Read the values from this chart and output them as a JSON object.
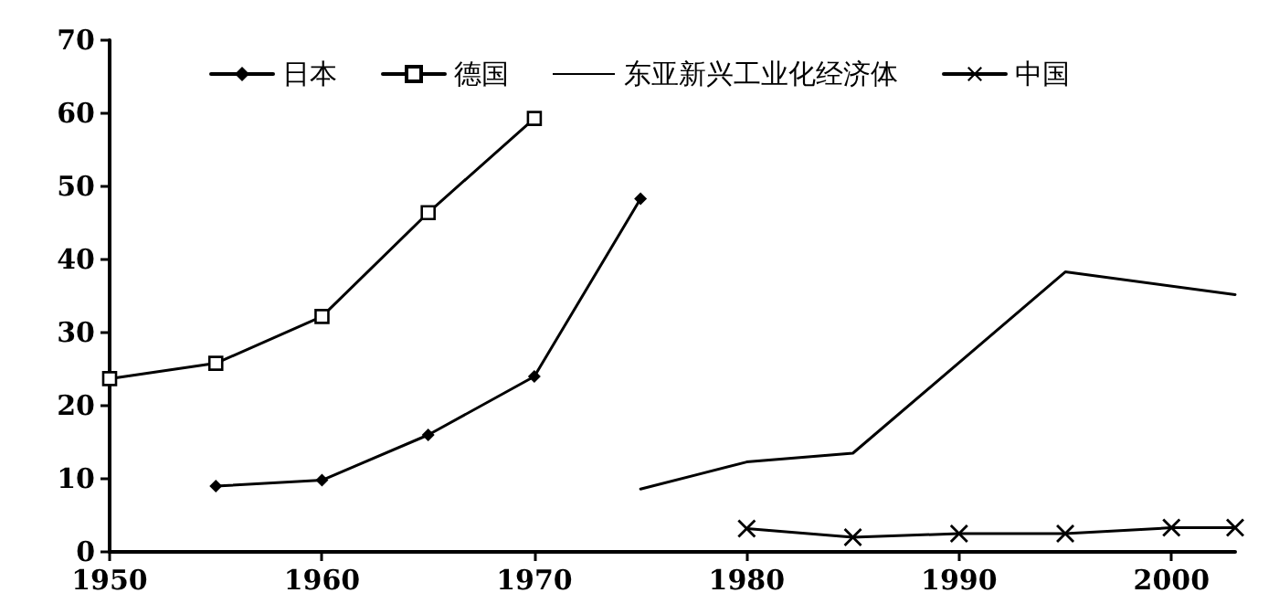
{
  "chart_data": {
    "type": "line",
    "series": [
      {
        "name": "日本",
        "color": "#000000",
        "marker": "diamond",
        "x": [
          1955,
          1960,
          1965,
          1970,
          1975
        ],
        "values": [
          9,
          9.8,
          16,
          24,
          48.3
        ]
      },
      {
        "name": "德国",
        "color": "#000000",
        "marker": "square",
        "x": [
          1950,
          1955,
          1960,
          1965,
          1970
        ],
        "values": [
          23.7,
          25.8,
          32.2,
          46.4,
          59.3
        ]
      },
      {
        "name": "东亚新兴工业化经济体",
        "color": "#000000",
        "marker": "none",
        "x": [
          1975,
          1980,
          1985,
          1995,
          2003
        ],
        "values": [
          8.6,
          12.3,
          13.5,
          38.3,
          35.2
        ]
      },
      {
        "name": "中国",
        "color": "#000000",
        "marker": "cross",
        "x": [
          1980,
          1985,
          1990,
          1995,
          2000,
          2003
        ],
        "values": [
          3.2,
          2.0,
          2.5,
          2.5,
          3.3,
          3.3
        ]
      }
    ],
    "xlim": [
      1950,
      2003
    ],
    "xticks": [
      1950,
      1960,
      1970,
      1980,
      1990,
      2000
    ],
    "ylim": [
      0,
      70
    ],
    "yticks": [
      0,
      10,
      20,
      30,
      40,
      50,
      60,
      70
    ],
    "grid": false,
    "legend": "top"
  }
}
